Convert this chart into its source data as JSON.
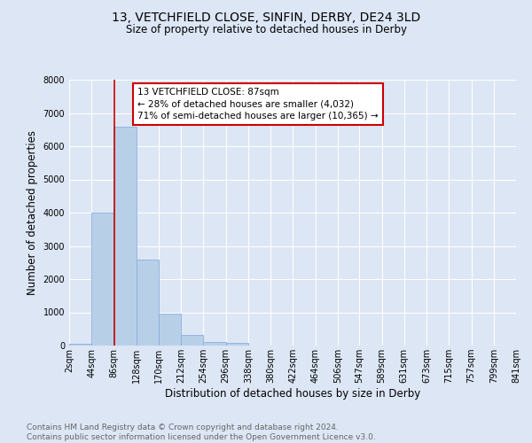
{
  "title": "13, VETCHFIELD CLOSE, SINFIN, DERBY, DE24 3LD",
  "subtitle": "Size of property relative to detached houses in Derby",
  "xlabel": "Distribution of detached houses by size in Derby",
  "ylabel": "Number of detached properties",
  "bin_edges": [
    2,
    44,
    86,
    128,
    170,
    212,
    254,
    296,
    338,
    380,
    422,
    464,
    506,
    547,
    589,
    631,
    673,
    715,
    757,
    799,
    841
  ],
  "bin_labels": [
    "2sqm",
    "44sqm",
    "86sqm",
    "128sqm",
    "170sqm",
    "212sqm",
    "254sqm",
    "296sqm",
    "338sqm",
    "380sqm",
    "422sqm",
    "464sqm",
    "506sqm",
    "547sqm",
    "589sqm",
    "631sqm",
    "673sqm",
    "715sqm",
    "757sqm",
    "799sqm",
    "841sqm"
  ],
  "counts": [
    60,
    4000,
    6600,
    2600,
    950,
    330,
    115,
    80,
    0,
    0,
    0,
    0,
    0,
    0,
    0,
    0,
    0,
    0,
    0,
    0
  ],
  "bar_color": "#b8cfe8",
  "bar_edge_color": "#8aafe0",
  "property_line_x": 87,
  "property_line_color": "#cc0000",
  "annotation_text": "13 VETCHFIELD CLOSE: 87sqm\n← 28% of detached houses are smaller (4,032)\n71% of semi-detached houses are larger (10,365) →",
  "annotation_box_color": "#ffffff",
  "annotation_box_edge_color": "#cc0000",
  "ylim": [
    0,
    8000
  ],
  "yticks": [
    0,
    1000,
    2000,
    3000,
    4000,
    5000,
    6000,
    7000,
    8000
  ],
  "footer_line1": "Contains HM Land Registry data © Crown copyright and database right 2024.",
  "footer_line2": "Contains public sector information licensed under the Open Government Licence v3.0.",
  "bg_color": "#dce6f5",
  "plot_bg_color": "#dce6f5",
  "grid_color": "#ffffff",
  "title_fontsize": 10,
  "subtitle_fontsize": 8.5,
  "label_fontsize": 8.5,
  "tick_fontsize": 7,
  "footer_fontsize": 6.5,
  "annot_fontsize": 7.5
}
